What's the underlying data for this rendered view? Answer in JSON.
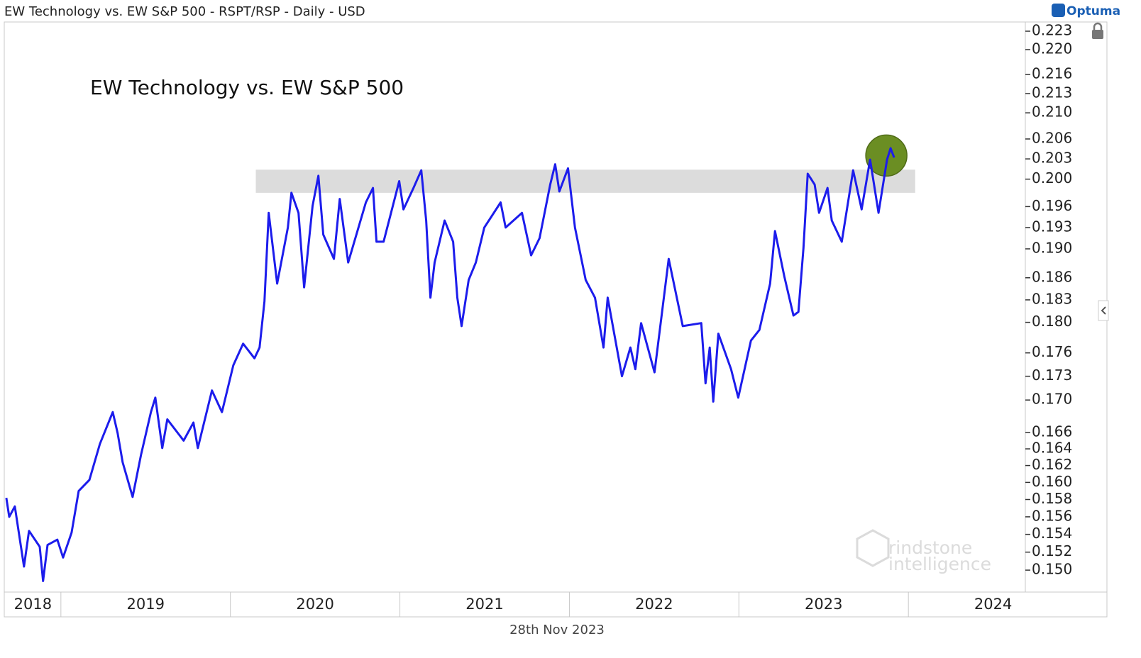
{
  "chart_data": {
    "type": "line",
    "title": "EW Technology vs. EW S&P 500 - RSPT/RSP - Daily - USD",
    "annotation": "EW Technology vs. EW S&P 500",
    "date": "28th Nov 2023",
    "logo": "Optuma",
    "watermark": [
      "rindstone",
      "intelligence"
    ],
    "color": "#1c1cec",
    "log_scale": true,
    "grid": false,
    "x": [
      2018.678,
      2018.695,
      2018.728,
      2018.782,
      2018.812,
      2018.875,
      2018.895,
      2018.921,
      2018.979,
      2019.013,
      2019.063,
      2019.105,
      2019.168,
      2019.23,
      2019.306,
      2019.335,
      2019.364,
      2019.423,
      2019.473,
      2019.531,
      2019.557,
      2019.598,
      2019.628,
      2019.724,
      2019.782,
      2019.808,
      2019.891,
      2019.95,
      2020.017,
      2020.075,
      2020.142,
      2020.172,
      2020.201,
      2020.226,
      2020.276,
      2020.339,
      2020.36,
      2020.402,
      2020.435,
      2020.485,
      2020.519,
      2020.548,
      2020.611,
      2020.645,
      2020.695,
      2020.799,
      2020.841,
      2020.862,
      2020.904,
      2020.996,
      2021.021,
      2021.08,
      2021.126,
      2021.155,
      2021.18,
      2021.205,
      2021.264,
      2021.314,
      2021.339,
      2021.364,
      2021.406,
      2021.448,
      2021.498,
      2021.594,
      2021.624,
      2021.72,
      2021.774,
      2021.824,
      2021.887,
      2021.916,
      2021.941,
      2021.992,
      2022.033,
      2022.096,
      2022.151,
      2022.201,
      2022.226,
      2022.31,
      2022.36,
      2022.389,
      2022.423,
      2022.502,
      2022.586,
      2022.669,
      2022.778,
      2022.803,
      2022.828,
      2022.849,
      2022.879,
      2022.954,
      2022.996,
      2023.071,
      2023.121,
      2023.184,
      2023.213,
      2023.268,
      2023.322,
      2023.351,
      2023.381,
      2023.406,
      2023.447,
      2023.473,
      2023.523,
      2023.548,
      2023.607,
      2023.674,
      2023.724,
      2023.774,
      2023.824,
      2023.874,
      2023.895,
      2023.916
    ],
    "values": [
      0.1582,
      0.156,
      0.1572,
      0.1504,
      0.1544,
      0.1526,
      0.1488,
      0.1528,
      0.1534,
      0.1514,
      0.1542,
      0.159,
      0.1603,
      0.1646,
      0.1685,
      0.1659,
      0.1624,
      0.1583,
      0.1633,
      0.1685,
      0.1703,
      0.1641,
      0.1676,
      0.165,
      0.1672,
      0.1641,
      0.1712,
      0.1685,
      0.1744,
      0.1772,
      0.1753,
      0.1767,
      0.1828,
      0.1951,
      0.1852,
      0.193,
      0.198,
      0.1951,
      0.1847,
      0.1961,
      0.2005,
      0.192,
      0.1886,
      0.1971,
      0.1881,
      0.1966,
      0.1987,
      0.191,
      0.191,
      0.1997,
      0.1956,
      0.1987,
      0.2013,
      0.194,
      0.1833,
      0.1881,
      0.194,
      0.191,
      0.1833,
      0.1795,
      0.1857,
      0.1881,
      0.193,
      0.1966,
      0.193,
      0.1951,
      0.1891,
      0.1915,
      0.1992,
      0.2022,
      0.1982,
      0.2016,
      0.193,
      0.1857,
      0.1833,
      0.1767,
      0.1833,
      0.173,
      0.1767,
      0.1739,
      0.1799,
      0.1735,
      0.1886,
      0.1795,
      0.1799,
      0.1721,
      0.1767,
      0.1698,
      0.1785,
      0.1739,
      0.1703,
      0.1776,
      0.179,
      0.1852,
      0.1925,
      0.1862,
      0.1809,
      0.1814,
      0.1901,
      0.2008,
      0.1992,
      0.1951,
      0.1987,
      0.194,
      0.191,
      0.2013,
      0.1956,
      0.2029,
      0.1951,
      0.2029,
      0.2046,
      0.2032
    ],
    "xlim": [
      2018.67,
      2024.69
    ],
    "xticks": [
      2018,
      2019,
      2020,
      2021,
      2022,
      2023,
      2024
    ],
    "ylim": [
      0.1476,
      0.2244
    ],
    "yticks": [
      0.223,
      {
        "value": 0.22,
        "label": "0.220"
      },
      0.216,
      0.213,
      {
        "value": 0.21,
        "label": "0.210"
      },
      0.206,
      0.203,
      {
        "value": 0.2,
        "label": "0.200"
      },
      0.196,
      0.193,
      {
        "value": 0.19,
        "label": "0.190"
      },
      0.186,
      0.183,
      {
        "value": 0.18,
        "label": "0.180"
      },
      0.176,
      0.173,
      {
        "value": 0.17,
        "label": "0.170"
      },
      0.166,
      0.164,
      0.162,
      {
        "value": 0.16,
        "label": "0.160"
      },
      0.158,
      0.156,
      0.154,
      0.152,
      {
        "value": 0.15,
        "label": "0.150"
      }
    ],
    "zone": {
      "x": [
        2020.15,
        2024.04
      ],
      "y": [
        0.198,
        0.2014
      ],
      "color": "#dcdcdc"
    },
    "highlight": {
      "x": 2023.87,
      "y": 0.2035,
      "color": "#6b8e23"
    }
  }
}
